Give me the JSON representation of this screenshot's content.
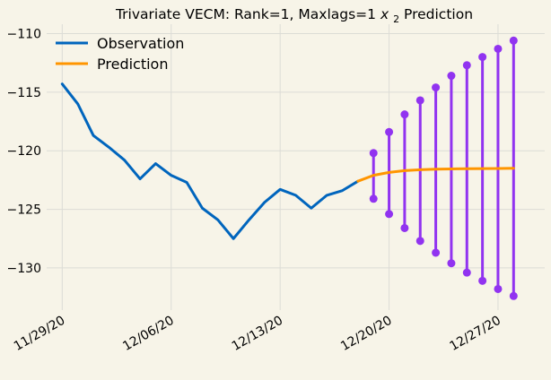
{
  "chart_data": {
    "type": "line",
    "title": "Trivariate VECM: Rank=1, Maxlags=1 x2 Prediction",
    "title_parts": {
      "prefix": "Trivariate VECM: Rank=1, Maxlags=1 ",
      "var": "x",
      "sub": "2",
      "suffix": " Prediction"
    },
    "xlabel": "",
    "ylabel": "",
    "x_range": [
      "2020-11-28",
      "2020-12-30"
    ],
    "ylim": [
      -133.6,
      -109.2
    ],
    "grid": true,
    "legend_position": "top-left",
    "x_ticks": [
      "2020-11-29",
      "2020-12-06",
      "2020-12-13",
      "2020-12-20",
      "2020-12-27"
    ],
    "x_tick_labels": [
      "11/29/20",
      "12/06/20",
      "12/13/20",
      "12/20/20",
      "12/27/20"
    ],
    "y_ticks": [
      -110,
      -115,
      -120,
      -125,
      -130
    ],
    "y_tick_labels": [
      "−110",
      "−115",
      "−120",
      "−125",
      "−130"
    ],
    "colors": {
      "observation": "#0065bd",
      "prediction": "#ff9500",
      "interval": "#9133f0",
      "grid": "#dcdcd6",
      "background": "#f7f4e8"
    },
    "series": [
      {
        "name": "Observation",
        "color": "#0065bd",
        "x": [
          "2020-11-29",
          "2020-11-30",
          "2020-12-01",
          "2020-12-02",
          "2020-12-03",
          "2020-12-04",
          "2020-12-05",
          "2020-12-06",
          "2020-12-07",
          "2020-12-08",
          "2020-12-09",
          "2020-12-10",
          "2020-12-11",
          "2020-12-12",
          "2020-12-13",
          "2020-12-14",
          "2020-12-15",
          "2020-12-16",
          "2020-12-17",
          "2020-12-18"
        ],
        "values": [
          -114.3,
          -116.0,
          -118.7,
          -119.7,
          -120.8,
          -122.4,
          -121.1,
          -122.1,
          -122.7,
          -124.9,
          -125.9,
          -127.5,
          -125.9,
          -124.4,
          -123.3,
          -123.8,
          -124.9,
          -123.8,
          -123.4,
          -122.6
        ]
      },
      {
        "name": "Prediction",
        "color": "#ff9500",
        "x": [
          "2020-12-18",
          "2020-12-19",
          "2020-12-20",
          "2020-12-21",
          "2020-12-22",
          "2020-12-23",
          "2020-12-24",
          "2020-12-25",
          "2020-12-26",
          "2020-12-27",
          "2020-12-28"
        ],
        "values": [
          -122.6,
          -122.1,
          -121.85,
          -121.7,
          -121.62,
          -121.57,
          -121.55,
          -121.53,
          -121.52,
          -121.51,
          -121.5
        ]
      }
    ],
    "intervals": {
      "color": "#9133f0",
      "x": [
        "2020-12-19",
        "2020-12-20",
        "2020-12-21",
        "2020-12-22",
        "2020-12-23",
        "2020-12-24",
        "2020-12-25",
        "2020-12-26",
        "2020-12-27",
        "2020-12-28"
      ],
      "upper": [
        -120.2,
        -118.4,
        -116.9,
        -115.7,
        -114.6,
        -113.6,
        -112.7,
        -112.0,
        -111.3,
        -110.6
      ],
      "lower": [
        -124.1,
        -125.4,
        -126.6,
        -127.7,
        -128.7,
        -129.6,
        -130.4,
        -131.1,
        -131.8,
        -132.4
      ]
    }
  }
}
